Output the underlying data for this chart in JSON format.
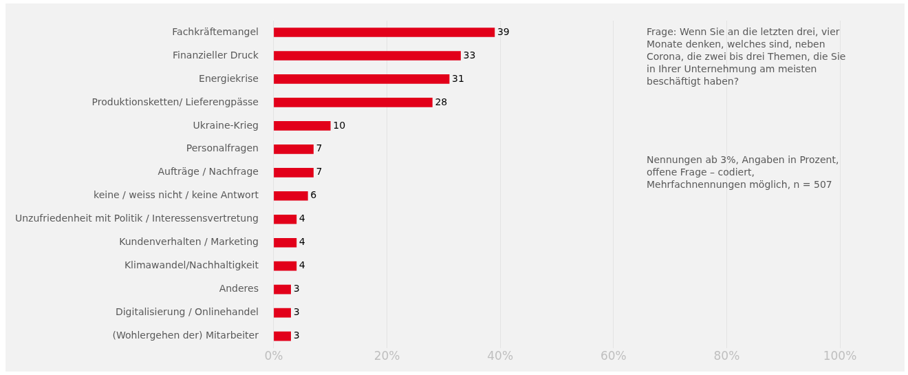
{
  "chart_data": {
    "type": "bar",
    "orientation": "horizontal",
    "categories": [
      "Fachkräftemangel",
      "Finanzieller Druck",
      "Energiekrise",
      "Produktionsketten/ Lieferengpässe",
      "Ukraine-Krieg",
      "Personalfragen",
      "Aufträge / Nachfrage",
      "keine / weiss nicht / keine Antwort",
      "Unzufriedenheit mit Politik / Interessensvertretung",
      "Kundenverhalten / Marketing",
      "Klimawandel/Nachhaltigkeit",
      "Anderes",
      "Digitalisierung / Onlinehandel",
      "(Wohlergehen der) Mitarbeiter"
    ],
    "values": [
      39,
      33,
      31,
      28,
      10,
      7,
      7,
      6,
      4,
      4,
      4,
      3,
      3,
      3
    ],
    "color": "#e2001a",
    "xlim": [
      0,
      100
    ],
    "xticks": [
      {
        "value": 0,
        "label": "0%"
      },
      {
        "value": 20,
        "label": "20%"
      },
      {
        "value": 40,
        "label": "40%"
      },
      {
        "value": 60,
        "label": "60%"
      },
      {
        "value": 80,
        "label": "80%"
      },
      {
        "value": 100,
        "label": "100%"
      }
    ],
    "grid": "x",
    "legend": false,
    "data_labels": true,
    "annotations": [
      "Frage: Wenn Sie an die letzten drei, vier Monate denken, welches sind, neben Corona, die zwei bis drei Themen, die Sie in Ihrer Unternehmung am meisten beschäftigt haben?",
      "Nennungen ab 3%, Angaben in Prozent, offene Frage – codiert, Mehrfachnennungen möglich, n = 507"
    ]
  }
}
